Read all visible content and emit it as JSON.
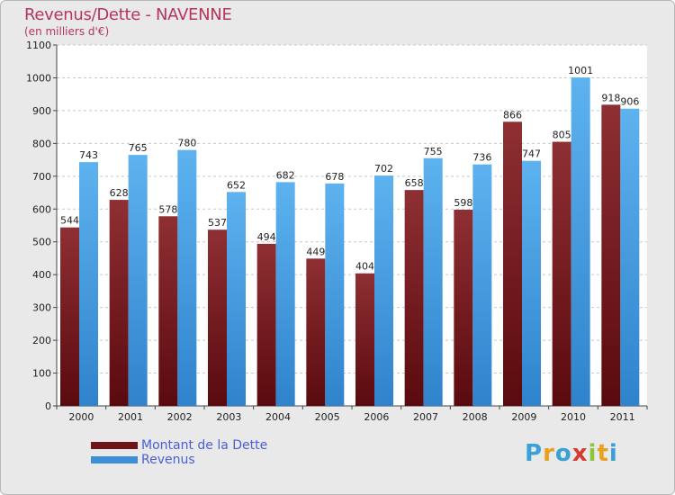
{
  "title": "Revenus/Dette - NAVENNE",
  "subtitle": "(en milliers d'€)",
  "logo": {
    "text": "Proxiti"
  },
  "colors": {
    "dette": "#6e1418",
    "dette_light": "#8a2a2e",
    "revenus": "#3a8fd8",
    "revenus_light": "#5cb0ee",
    "axis_text": "#222222",
    "title": "#b5365a"
  },
  "chart_data": {
    "type": "bar",
    "title": "Revenus/Dette - NAVENNE",
    "subtitle": "(en milliers d'€)",
    "categories": [
      "2000",
      "2001",
      "2002",
      "2003",
      "2004",
      "2005",
      "2006",
      "2007",
      "2008",
      "2009",
      "2010",
      "2011"
    ],
    "series": [
      {
        "name": "Montant de la Dette",
        "values": [
          544,
          628,
          578,
          537,
          494,
          449,
          404,
          658,
          598,
          866,
          805,
          918
        ]
      },
      {
        "name": "Revenus",
        "values": [
          743,
          765,
          780,
          652,
          682,
          678,
          702,
          755,
          736,
          747,
          1001,
          906
        ]
      }
    ],
    "ylim": [
      0,
      1100
    ],
    "yticks": [
      0,
      100,
      200,
      300,
      400,
      500,
      600,
      700,
      800,
      900,
      1000,
      1100
    ],
    "grid": true,
    "legend": "bottom-left"
  }
}
